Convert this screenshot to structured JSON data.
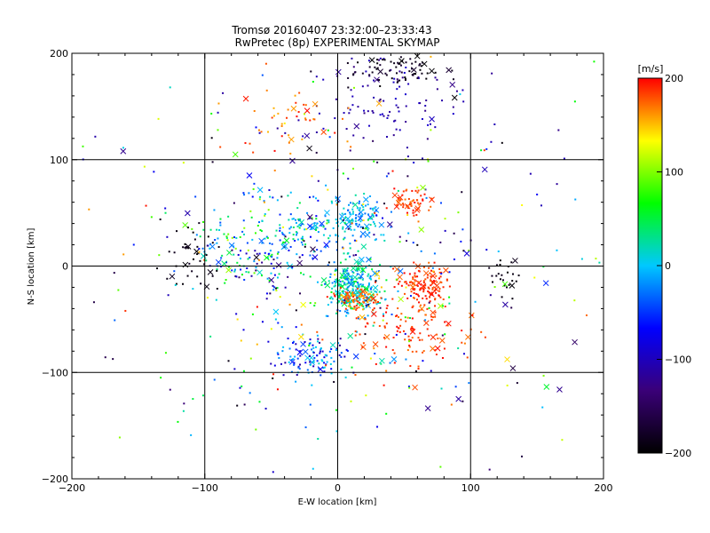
{
  "chart_data": {
    "type": "scatter",
    "title": "Tromsø 20160407 23:32:00–23:33:43",
    "subtitle": "RwPretec (8p) EXPERIMENTAL SKYMAP",
    "xlabel": "E-W location [km]",
    "ylabel": "N-S location [km]",
    "xlim": [
      -200,
      200
    ],
    "ylim": [
      -200,
      200
    ],
    "xticks": [
      "−200",
      "−100",
      "0",
      "100",
      "200"
    ],
    "yticks": [
      "−200",
      "−100",
      "0",
      "100",
      "200"
    ],
    "grid": true,
    "grid_lines": [
      -100,
      0,
      100
    ],
    "colorbar": {
      "label": "[m/s]",
      "range": [
        -200,
        200
      ],
      "ticks": [
        "−200",
        "−100",
        "0",
        "100",
        "200"
      ],
      "colormap": "rainbow",
      "colors": [
        "#000000",
        "#3a0078",
        "#0000ff",
        "#00c8ff",
        "#00ff00",
        "#ffff00",
        "#ff0000"
      ]
    },
    "markers": [
      "dot",
      "cross"
    ],
    "clusters": [
      {
        "center": [
          12,
          -20
        ],
        "spread": [
          10,
          14
        ],
        "count": 280,
        "velocity_range": [
          -40,
          60
        ]
      },
      {
        "center": [
          15,
          -30
        ],
        "spread": [
          9,
          6
        ],
        "count": 90,
        "velocity_range": [
          150,
          200
        ]
      },
      {
        "center": [
          65,
          -18
        ],
        "spread": [
          10,
          10
        ],
        "count": 130,
        "velocity_range": [
          170,
          200
        ]
      },
      {
        "center": [
          55,
          60
        ],
        "spread": [
          8,
          6
        ],
        "count": 60,
        "velocity_range": [
          170,
          200
        ]
      },
      {
        "center": [
          15,
          45
        ],
        "spread": [
          10,
          10
        ],
        "count": 110,
        "velocity_range": [
          -40,
          30
        ]
      },
      {
        "center": [
          -25,
          35
        ],
        "spread": [
          22,
          14
        ],
        "count": 120,
        "velocity_range": [
          -70,
          60
        ]
      },
      {
        "center": [
          -80,
          30
        ],
        "spread": [
          15,
          12
        ],
        "count": 60,
        "velocity_range": [
          -60,
          120
        ]
      },
      {
        "center": [
          -60,
          0
        ],
        "spread": [
          20,
          10
        ],
        "count": 70,
        "velocity_range": [
          -150,
          80
        ]
      },
      {
        "center": [
          -20,
          -85
        ],
        "spread": [
          14,
          10
        ],
        "count": 110,
        "velocity_range": [
          -120,
          20
        ]
      },
      {
        "center": [
          50,
          -65
        ],
        "spread": [
          25,
          15
        ],
        "count": 110,
        "velocity_range": [
          170,
          200
        ]
      },
      {
        "center": [
          30,
          150
        ],
        "spread": [
          40,
          30
        ],
        "count": 120,
        "velocity_range": [
          -130,
          -90
        ]
      },
      {
        "center": [
          50,
          185
        ],
        "spread": [
          20,
          8
        ],
        "count": 80,
        "velocity_range": [
          -200,
          -170
        ]
      },
      {
        "center": [
          -110,
          10
        ],
        "spread": [
          10,
          15
        ],
        "count": 40,
        "velocity_range": [
          -200,
          -180
        ]
      },
      {
        "center": [
          125,
          -5
        ],
        "spread": [
          8,
          10
        ],
        "count": 25,
        "velocity_range": [
          -200,
          -180
        ]
      },
      {
        "center": [
          -30,
          140
        ],
        "spread": [
          25,
          20
        ],
        "count": 50,
        "velocity_range": [
          150,
          200
        ]
      },
      {
        "center": [
          0,
          0
        ],
        "spread": [
          90,
          90
        ],
        "count": 400,
        "velocity_range": [
          -200,
          200
        ]
      }
    ]
  }
}
